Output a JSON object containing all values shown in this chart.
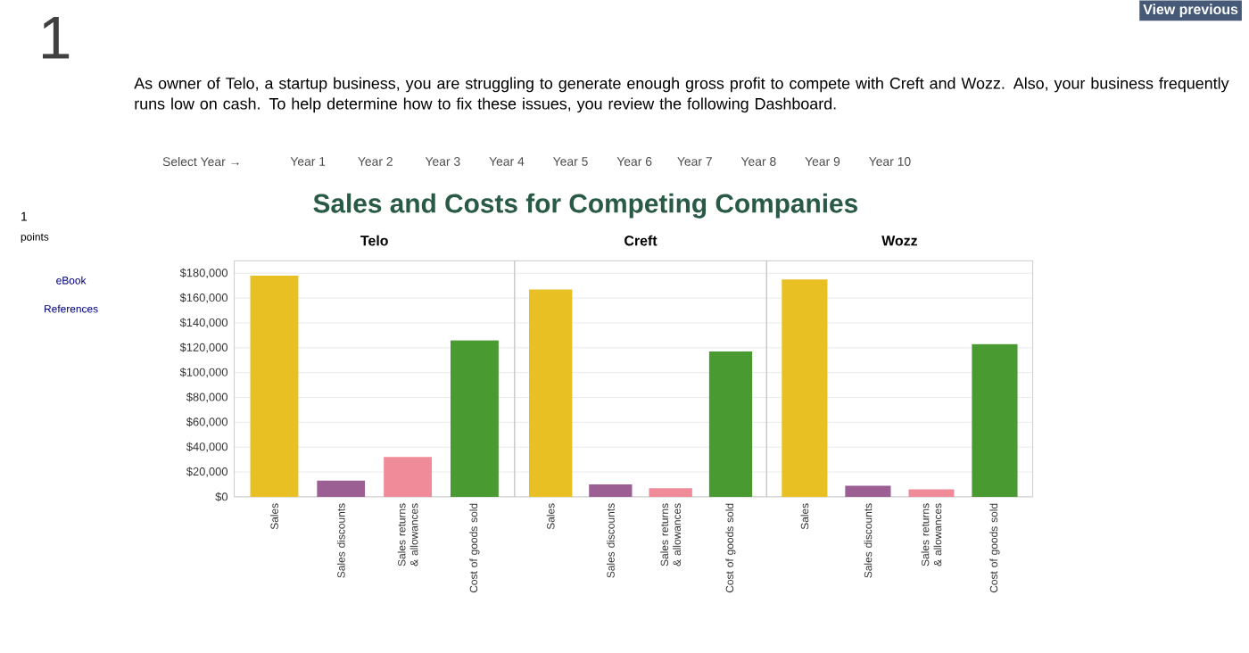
{
  "chart_data": [
    {
      "type": "bar",
      "title": "Telo",
      "categories": [
        "Sales",
        "Sales discounts",
        "Sales returns & allowances",
        "Cost of goods sold"
      ],
      "values": [
        178000,
        13000,
        32000,
        126000
      ],
      "colors": [
        "#e8c024",
        "#9b5f94",
        "#f08c9a",
        "#4a9a32"
      ],
      "ylim": [
        0,
        190000
      ],
      "yticks": [
        {
          "value": 0,
          "label": "$0"
        },
        {
          "value": 20000,
          "label": "$20,000"
        },
        {
          "value": 40000,
          "label": "$40,000"
        },
        {
          "value": 60000,
          "label": "$60,000"
        },
        {
          "value": 80000,
          "label": "$80,000"
        },
        {
          "value": 100000,
          "label": "$100,000"
        },
        {
          "value": 120000,
          "label": "$120,000"
        },
        {
          "value": 140000,
          "label": "$140,000"
        },
        {
          "value": 160000,
          "label": "$160,000"
        },
        {
          "value": 180000,
          "label": "$180,000"
        }
      ],
      "grid": "y",
      "annotations": [
        "1",
        "1",
        "points",
        "eBook",
        "References",
        "View previous",
        "As owner of Telo, a startup business, you are struggling to generate enough gross profit to compete with Creft and Wozz. Also, your business frequently runs low on cash. To help determine how to fix these issues, you review the following Dashboard.",
        "Select Year →",
        "Year 1",
        "Year 2",
        "Year 3",
        "Year 4",
        "Year 5",
        "Year 6",
        "Year 7",
        "Year 8",
        "Year 9",
        "Year 10",
        "Sales and Costs for Competing Companies"
      ]
    },
    {
      "type": "bar",
      "title": "Creft",
      "categories": [
        "Sales",
        "Sales discounts",
        "Sales returns & allowances",
        "Cost of goods sold"
      ],
      "values": [
        167000,
        10000,
        7000,
        117000
      ],
      "colors": [
        "#e8c024",
        "#9b5f94",
        "#f08c9a",
        "#4a9a32"
      ],
      "ylim": [
        0,
        190000
      ],
      "yticks": [
        0,
        20000,
        40000,
        60000,
        80000,
        100000,
        120000,
        140000,
        160000,
        180000
      ],
      "grid": "y",
      "tick_labels": "x"
    },
    {
      "type": "bar",
      "title": "Wozz",
      "categories": [
        "Sales",
        "Sales discounts",
        "Sales returns & allowances",
        "Cost of goods sold"
      ],
      "values": [
        175000,
        9000,
        6000,
        123000
      ],
      "colors": [
        "#e8c024",
        "#9b5f94",
        "#f08c9a",
        "#4a9a32"
      ],
      "ylim": [
        0,
        190000
      ],
      "yticks": [
        0,
        20000,
        40000,
        60000,
        80000,
        100000,
        120000,
        140000,
        160000,
        180000
      ],
      "grid": "y",
      "tick_labels": "x"
    }
  ]
}
